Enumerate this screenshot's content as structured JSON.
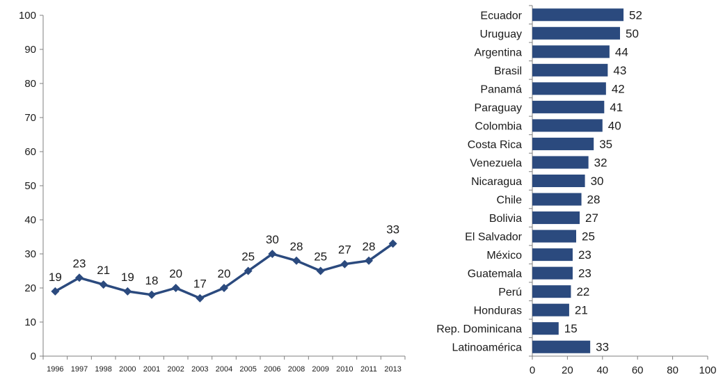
{
  "chart_data": [
    {
      "type": "line",
      "x": [
        "1996",
        "1997",
        "1998",
        "2000",
        "2001",
        "2002",
        "2003",
        "2004",
        "2005",
        "2006",
        "2008",
        "2009",
        "2010",
        "2011",
        "2013"
      ],
      "series": [
        {
          "values": [
            19,
            23,
            21,
            19,
            18,
            20,
            17,
            20,
            25,
            30,
            28,
            25,
            27,
            28,
            33
          ]
        }
      ],
      "ylim": [
        0,
        100
      ],
      "yticks": [
        0,
        10,
        20,
        30,
        40,
        50,
        60,
        70,
        80,
        90,
        100
      ],
      "grid": false,
      "color": "#2b4a7e",
      "marker": "diamond"
    },
    {
      "type": "bar",
      "orientation": "horizontal",
      "categories": [
        "Ecuador",
        "Uruguay",
        "Argentina",
        "Brasil",
        "Panamá",
        "Paraguay",
        "Colombia",
        "Costa Rica",
        "Venezuela",
        "Nicaragua",
        "Chile",
        "Bolivia",
        "El Salvador",
        "México",
        "Guatemala",
        "Perú",
        "Honduras",
        "Rep. Dominicana",
        "Latinoamérica"
      ],
      "values": [
        52,
        50,
        44,
        43,
        42,
        41,
        40,
        35,
        32,
        30,
        28,
        27,
        25,
        23,
        23,
        22,
        21,
        15,
        33
      ],
      "xlim": [
        0,
        100
      ],
      "xticks": [
        0,
        20,
        40,
        60,
        80,
        100
      ],
      "grid": false,
      "color": "#2b4a7e"
    }
  ]
}
